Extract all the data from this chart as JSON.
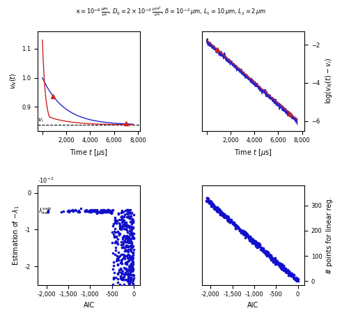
{
  "title": "$\\kappa = 10^{-6}\\,\\frac{\\mu\\mathrm{m}}{\\mu\\mathrm{s}}$, $D_0 = 2 \\times 10^{-3}\\,\\frac{\\mu\\mathrm{m}^2}{\\mu\\mathrm{s}}$, $\\delta = 10^{-2}\\,\\mu\\mathrm{m}$, $L_1 = 10\\,\\mu\\mathrm{m}$, $L_2 = 2\\,\\mu\\mathrm{m}$",
  "top_left": {
    "xlabel": "Time $t$ [$\\mu$s]",
    "ylabel": "$v_N(t)$",
    "xlim": [
      -400,
      8200
    ],
    "ylim": [
      0.818,
      1.16
    ],
    "yticks": [
      0.9,
      1.0,
      1.1
    ],
    "xticks": [
      0,
      2000,
      4000,
      6000,
      8000
    ],
    "vi_value": 0.838
  },
  "top_right": {
    "xlabel": "Time $t$ [$\\mu$s]",
    "ylabel": "$\\log(v_N(t) - v_i)$",
    "xlim": [
      -400,
      8200
    ],
    "ylim": [
      -6.5,
      -1.3
    ],
    "yticks": [
      -2,
      -4,
      -6
    ],
    "xticks": [
      0,
      2000,
      4000,
      6000,
      8000
    ]
  },
  "bottom_left": {
    "xlabel": "AIC",
    "ylabel": "Estimation of $-\\lambda_1$",
    "xlim": [
      -2200,
      150
    ],
    "ylim": [
      -0.0025,
      0.0002
    ],
    "xticks": [
      -2000,
      -1500,
      -1000,
      -500,
      0
    ],
    "yticks": [
      0,
      -0.001,
      -0.002
    ],
    "lambda_snob_value": -0.0005
  },
  "bottom_right": {
    "xlabel": "AIC",
    "ylabel": "# points for linear reg.",
    "xlim": [
      -2200,
      150
    ],
    "ylim": [
      -15,
      380
    ],
    "xticks": [
      -2000,
      -1500,
      -1000,
      -500,
      0
    ],
    "yticks": [
      0,
      100,
      200,
      300
    ]
  },
  "blue_color": "#2222cc",
  "red_color": "#cc2222",
  "dot_color": "#1010cc"
}
